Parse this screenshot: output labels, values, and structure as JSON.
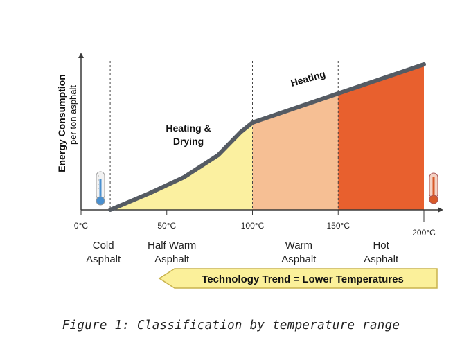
{
  "chart_data": {
    "type": "area",
    "title": "",
    "xlabel": "",
    "ylabel": "Energy Consumption",
    "ylabel_sub": "per ton asphalt",
    "xlim": [
      0,
      200
    ],
    "grid": false,
    "x_ticks": [
      {
        "value": 0,
        "label": "0°C"
      },
      {
        "value": 50,
        "label": "50°C"
      },
      {
        "value": 100,
        "label": "100°C"
      },
      {
        "value": 150,
        "label": "150°C"
      },
      {
        "value": 200,
        "label": "200°C"
      }
    ],
    "curve": {
      "x": [
        17,
        40,
        60,
        80,
        93,
        100,
        150,
        200
      ],
      "y": [
        0,
        24,
        47,
        79,
        112,
        126,
        168,
        210
      ]
    },
    "region_boundaries": [
      17,
      100,
      150,
      200
    ],
    "regions": [
      {
        "line1": "Cold",
        "line2": "Asphalt",
        "color": "#ffffff",
        "center": 13
      },
      {
        "line1": "Half Warm",
        "line2": "Asphalt",
        "color": "#fbf0a0",
        "center": 53
      },
      {
        "line1": "Warm",
        "line2": "Asphalt",
        "color": "#f6bf94",
        "center": 127
      },
      {
        "line1": "Hot",
        "line2": "Asphalt",
        "color": "#e8602e",
        "center": 175
      }
    ],
    "annotations": [
      {
        "line1": "Heating &",
        "line2": "Drying"
      },
      {
        "text": "Heating"
      }
    ],
    "arrow_label": "Technology Trend = Lower Temperatures",
    "colors": {
      "curve": "#555b63",
      "axis": "#3a3a3a",
      "arrow_fill": "#fbf09a",
      "arrow_stroke": "#c9b34d",
      "cold_thermo": "#4a90d0",
      "hot_thermo": "#d85a2a"
    }
  },
  "caption": "Figure 1: Classification by temperature range"
}
